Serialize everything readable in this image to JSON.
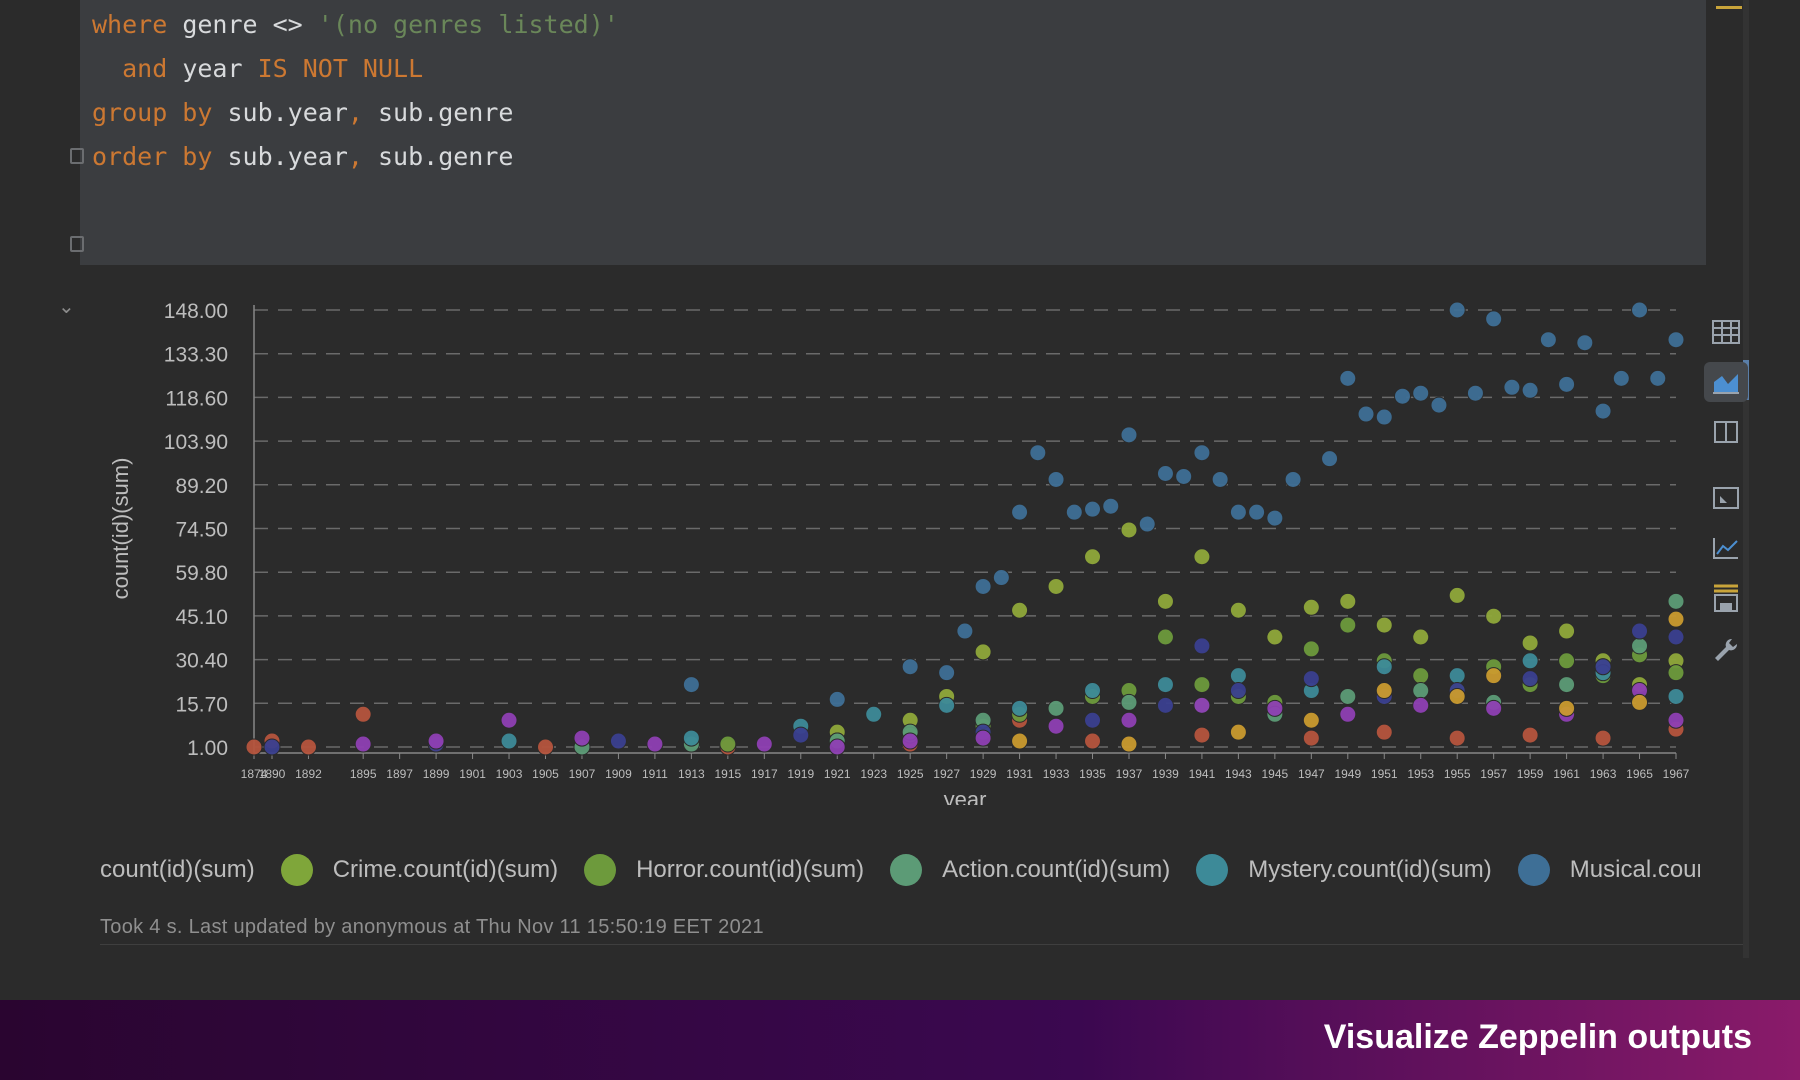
{
  "editor": {
    "lines": [
      [
        {
          "t": "where",
          "c": "kw"
        },
        {
          "t": " genre ",
          "c": "id"
        },
        {
          "t": "<>",
          "c": "id"
        },
        {
          "t": " '(no genres listed)'",
          "c": "str"
        }
      ],
      [
        {
          "t": "  and",
          "c": "kw"
        },
        {
          "t": " year ",
          "c": "id"
        },
        {
          "t": "IS NOT NULL",
          "c": "kw"
        }
      ],
      [
        {
          "t": "group by",
          "c": "kw"
        },
        {
          "t": " sub.year",
          "c": "id"
        },
        {
          "t": ",",
          "c": "punc"
        },
        {
          "t": " sub.genre",
          "c": "id"
        }
      ],
      [
        {
          "t": "order by",
          "c": "kw"
        },
        {
          "t": " sub.year",
          "c": "id"
        },
        {
          "t": ",",
          "c": "punc"
        },
        {
          "t": " sub.genre",
          "c": "id"
        }
      ]
    ]
  },
  "chart_data": {
    "type": "scatter",
    "xlabel": "year",
    "ylabel": "count(id)(sum)",
    "ylim": [
      1.0,
      148.0
    ],
    "yticks": [
      "148.00",
      "133.30",
      "118.60",
      "103.90",
      "89.20",
      "74.50",
      "59.80",
      "45.10",
      "30.40",
      "15.70",
      "1.00"
    ],
    "xticks": [
      "1874",
      "1890",
      "1892",
      "1895",
      "1897",
      "1899",
      "1901",
      "1903",
      "1905",
      "1907",
      "1909",
      "1911",
      "1913",
      "1915",
      "1917",
      "1919",
      "1921",
      "1923",
      "1925",
      "1927",
      "1929",
      "1931",
      "1933",
      "1935",
      "1937",
      "1939",
      "1941",
      "1943",
      "1945",
      "1947",
      "1949",
      "1951",
      "1953",
      "1955",
      "1957",
      "1959",
      "1961",
      "1963",
      "1965",
      "1967"
    ],
    "grid": true,
    "legend_position": "bottom",
    "series": [
      {
        "name": "count(id)(sum)",
        "color": "#b5543d",
        "points": [
          [
            1874,
            1
          ],
          [
            1890,
            3
          ],
          [
            1892,
            1
          ],
          [
            1895,
            12
          ],
          [
            1899,
            2
          ],
          [
            1905,
            1
          ],
          [
            1915,
            1
          ],
          [
            1925,
            2
          ],
          [
            1931,
            10
          ],
          [
            1935,
            3
          ],
          [
            1941,
            5
          ],
          [
            1947,
            4
          ],
          [
            1951,
            6
          ],
          [
            1955,
            4
          ],
          [
            1959,
            5
          ],
          [
            1963,
            4
          ],
          [
            1967,
            7
          ]
        ]
      },
      {
        "name": "Crime.count(id)(sum)",
        "color": "#8fa83a",
        "points": [
          [
            1921,
            6
          ],
          [
            1925,
            10
          ],
          [
            1927,
            18
          ],
          [
            1929,
            33
          ],
          [
            1931,
            47
          ],
          [
            1933,
            55
          ],
          [
            1935,
            65
          ],
          [
            1937,
            74
          ],
          [
            1939,
            50
          ],
          [
            1941,
            65
          ],
          [
            1943,
            47
          ],
          [
            1945,
            38
          ],
          [
            1947,
            48
          ],
          [
            1949,
            50
          ],
          [
            1951,
            42
          ],
          [
            1953,
            38
          ],
          [
            1955,
            52
          ],
          [
            1957,
            45
          ],
          [
            1959,
            36
          ],
          [
            1961,
            40
          ],
          [
            1963,
            30
          ],
          [
            1965,
            22
          ],
          [
            1967,
            30
          ]
        ]
      },
      {
        "name": "Horror.count(id)(sum)",
        "color": "#6d9a3c",
        "points": [
          [
            1915,
            2
          ],
          [
            1921,
            3
          ],
          [
            1925,
            5
          ],
          [
            1929,
            8
          ],
          [
            1931,
            12
          ],
          [
            1935,
            18
          ],
          [
            1937,
            20
          ],
          [
            1939,
            38
          ],
          [
            1941,
            22
          ],
          [
            1943,
            18
          ],
          [
            1945,
            16
          ],
          [
            1947,
            34
          ],
          [
            1949,
            42
          ],
          [
            1951,
            30
          ],
          [
            1953,
            25
          ],
          [
            1955,
            20
          ],
          [
            1957,
            28
          ],
          [
            1959,
            22
          ],
          [
            1961,
            30
          ],
          [
            1963,
            25
          ],
          [
            1965,
            32
          ],
          [
            1967,
            26
          ]
        ]
      },
      {
        "name": "Action.count(id)(sum)",
        "color": "#5c9b76",
        "points": [
          [
            1907,
            1
          ],
          [
            1913,
            2
          ],
          [
            1921,
            3
          ],
          [
            1925,
            6
          ],
          [
            1929,
            10
          ],
          [
            1933,
            14
          ],
          [
            1937,
            16
          ],
          [
            1941,
            15
          ],
          [
            1945,
            12
          ],
          [
            1949,
            18
          ],
          [
            1953,
            20
          ],
          [
            1957,
            16
          ],
          [
            1961,
            22
          ],
          [
            1963,
            28
          ],
          [
            1965,
            35
          ],
          [
            1967,
            50
          ]
        ]
      },
      {
        "name": "Mystery.count(id)(sum)",
        "color": "#3d8a98",
        "points": [
          [
            1903,
            3
          ],
          [
            1913,
            4
          ],
          [
            1919,
            8
          ],
          [
            1923,
            12
          ],
          [
            1927,
            15
          ],
          [
            1931,
            14
          ],
          [
            1935,
            20
          ],
          [
            1939,
            22
          ],
          [
            1943,
            25
          ],
          [
            1947,
            20
          ],
          [
            1951,
            28
          ],
          [
            1955,
            25
          ],
          [
            1959,
            30
          ],
          [
            1963,
            26
          ],
          [
            1967,
            18
          ]
        ]
      },
      {
        "name": "Musical.count(id)(sum)",
        "color": "#3e6f96",
        "points": [
          [
            1913,
            22
          ],
          [
            1921,
            17
          ],
          [
            1925,
            28
          ],
          [
            1927,
            26
          ],
          [
            1928,
            40
          ],
          [
            1929,
            55
          ],
          [
            1930,
            58
          ],
          [
            1931,
            80
          ],
          [
            1932,
            100
          ],
          [
            1933,
            91
          ],
          [
            1934,
            80
          ],
          [
            1935,
            81
          ],
          [
            1936,
            82
          ],
          [
            1937,
            106
          ],
          [
            1938,
            76
          ],
          [
            1939,
            93
          ],
          [
            1940,
            92
          ],
          [
            1941,
            100
          ],
          [
            1942,
            91
          ],
          [
            1943,
            80
          ],
          [
            1944,
            80
          ],
          [
            1945,
            78
          ],
          [
            1946,
            91
          ],
          [
            1948,
            98
          ],
          [
            1949,
            125
          ],
          [
            1950,
            113
          ],
          [
            1951,
            112
          ],
          [
            1952,
            119
          ],
          [
            1953,
            120
          ],
          [
            1954,
            116
          ],
          [
            1955,
            148
          ],
          [
            1956,
            120
          ],
          [
            1957,
            145
          ],
          [
            1958,
            122
          ],
          [
            1959,
            121
          ],
          [
            1960,
            138
          ],
          [
            1961,
            123
          ],
          [
            1962,
            137
          ],
          [
            1963,
            114
          ],
          [
            1964,
            125
          ],
          [
            1965,
            148
          ],
          [
            1966,
            125
          ],
          [
            1967,
            138
          ]
        ]
      },
      {
        "name": "",
        "color": "#3a3f8f",
        "points": [
          [
            1890,
            1
          ],
          [
            1899,
            2
          ],
          [
            1909,
            3
          ],
          [
            1919,
            5
          ],
          [
            1929,
            6
          ],
          [
            1935,
            10
          ],
          [
            1939,
            15
          ],
          [
            1941,
            35
          ],
          [
            1943,
            20
          ],
          [
            1947,
            24
          ],
          [
            1951,
            18
          ],
          [
            1955,
            20
          ],
          [
            1959,
            24
          ],
          [
            1963,
            28
          ],
          [
            1965,
            40
          ],
          [
            1967,
            38
          ]
        ]
      },
      {
        "name": "",
        "color": "#8e3fb3",
        "points": [
          [
            1895,
            2
          ],
          [
            1899,
            3
          ],
          [
            1903,
            10
          ],
          [
            1907,
            4
          ],
          [
            1911,
            2
          ],
          [
            1917,
            2
          ],
          [
            1921,
            1
          ],
          [
            1925,
            3
          ],
          [
            1929,
            4
          ],
          [
            1933,
            8
          ],
          [
            1937,
            10
          ],
          [
            1941,
            15
          ],
          [
            1945,
            14
          ],
          [
            1949,
            12
          ],
          [
            1953,
            15
          ],
          [
            1957,
            14
          ],
          [
            1961,
            12
          ],
          [
            1965,
            20
          ],
          [
            1967,
            10
          ]
        ]
      },
      {
        "name": "",
        "color": "#c99a2e",
        "points": [
          [
            1931,
            3
          ],
          [
            1937,
            2
          ],
          [
            1943,
            6
          ],
          [
            1947,
            10
          ],
          [
            1951,
            20
          ],
          [
            1955,
            18
          ],
          [
            1957,
            25
          ],
          [
            1961,
            14
          ],
          [
            1965,
            16
          ],
          [
            1967,
            44
          ]
        ]
      }
    ]
  },
  "legend": [
    {
      "label": "count(id)(sum)",
      "dot_color": ""
    },
    {
      "label": "Crime.count(id)(sum)",
      "dot_color": "#7fa63a"
    },
    {
      "label": "Horror.count(id)(sum)",
      "dot_color": "#6d9a3c"
    },
    {
      "label": "Action.count(id)(sum)",
      "dot_color": "#5c9b76"
    },
    {
      "label": "Mystery.count(id)(sum)",
      "dot_color": "#3d8a98"
    },
    {
      "label": "Musical.coun",
      "dot_color": "#3e6f96"
    }
  ],
  "status": {
    "text": "Took 4 s. Last updated by anonymous at Thu Nov 11 15:50:19 EET 2021"
  },
  "toolbar": {
    "buttons": [
      {
        "icon": "table-icon",
        "active": false
      },
      {
        "icon": "area-chart-icon",
        "active": true
      },
      {
        "icon": "column-chart-icon",
        "active": false
      },
      {
        "icon": "pie-frame-icon",
        "active": false
      },
      {
        "icon": "line-chart-icon",
        "active": false
      },
      {
        "icon": "save-icon",
        "active": false
      },
      {
        "icon": "wrench-icon",
        "active": false
      }
    ]
  },
  "banner": {
    "title": "Visualize Zeppelin outputs"
  },
  "colors": {
    "grid": "#6a6a6a",
    "axis": "#888888",
    "banner_end": "#8a1b6a"
  }
}
